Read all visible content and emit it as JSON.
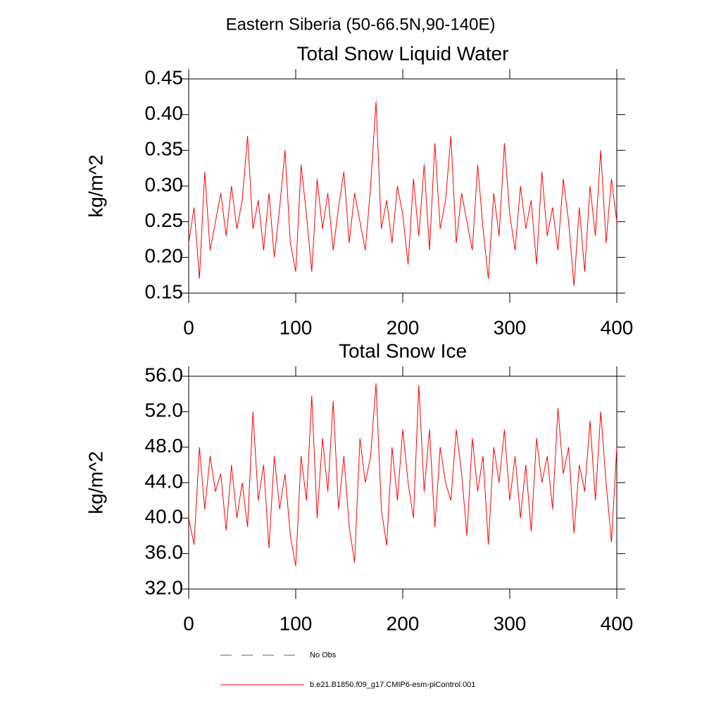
{
  "title": "Eastern Siberia (50-66.5N,90-140E)",
  "legend": [
    {
      "name": "No Obs",
      "color": "#5a5a9a",
      "dash": true
    },
    {
      "name": "b.e21.B1850.f09_g17.CMIP6-esm-piControl.001",
      "color": "#ff0000",
      "dash": false
    }
  ],
  "chart_data": [
    {
      "type": "line",
      "title": "Total Snow Liquid Water",
      "y_label": "kg/m^2",
      "x": [
        0,
        5,
        10,
        15,
        20,
        25,
        30,
        35,
        40,
        45,
        50,
        55,
        60,
        65,
        70,
        75,
        80,
        85,
        90,
        95,
        100,
        105,
        110,
        115,
        120,
        125,
        130,
        135,
        140,
        145,
        150,
        155,
        160,
        165,
        170,
        175,
        180,
        185,
        190,
        195,
        200,
        205,
        210,
        215,
        220,
        225,
        230,
        235,
        240,
        245,
        250,
        255,
        260,
        265,
        270,
        275,
        280,
        285,
        290,
        295,
        300,
        305,
        310,
        315,
        320,
        325,
        330,
        335,
        340,
        345,
        350,
        355,
        360,
        365,
        370,
        375,
        380,
        385,
        390,
        395,
        400
      ],
      "series": [
        {
          "color": "#ff0000",
          "values": [
            0.22,
            0.27,
            0.17,
            0.32,
            0.21,
            0.25,
            0.29,
            0.23,
            0.3,
            0.24,
            0.28,
            0.37,
            0.24,
            0.28,
            0.21,
            0.29,
            0.2,
            0.27,
            0.35,
            0.22,
            0.18,
            0.33,
            0.26,
            0.18,
            0.31,
            0.24,
            0.29,
            0.21,
            0.27,
            0.32,
            0.22,
            0.29,
            0.25,
            0.21,
            0.3,
            0.418,
            0.24,
            0.28,
            0.22,
            0.3,
            0.26,
            0.19,
            0.31,
            0.23,
            0.33,
            0.21,
            0.36,
            0.24,
            0.28,
            0.37,
            0.22,
            0.29,
            0.25,
            0.21,
            0.33,
            0.24,
            0.17,
            0.29,
            0.23,
            0.36,
            0.26,
            0.21,
            0.3,
            0.24,
            0.28,
            0.19,
            0.32,
            0.23,
            0.27,
            0.21,
            0.31,
            0.25,
            0.16,
            0.27,
            0.18,
            0.3,
            0.23,
            0.35,
            0.22,
            0.31,
            0.25
          ]
        }
      ],
      "xlim": [
        0,
        400
      ],
      "xticks": [
        0,
        100,
        200,
        300,
        400
      ],
      "ylim": [
        0.15,
        0.45
      ],
      "yticks": [
        0.15,
        {
          "value": 0.2,
          "label": "0.20"
        },
        0.25,
        {
          "value": 0.3,
          "label": "0.30"
        },
        0.35,
        {
          "value": 0.4,
          "label": "0.40"
        },
        0.45
      ]
    },
    {
      "type": "line",
      "title": "Total Snow Ice",
      "y_label": "kg/m^2",
      "x": [
        0,
        5,
        10,
        15,
        20,
        25,
        30,
        35,
        40,
        45,
        50,
        55,
        60,
        65,
        70,
        75,
        80,
        85,
        90,
        95,
        100,
        105,
        110,
        115,
        120,
        125,
        130,
        135,
        140,
        145,
        150,
        155,
        160,
        165,
        170,
        175,
        180,
        185,
        190,
        195,
        200,
        205,
        210,
        215,
        220,
        225,
        230,
        235,
        240,
        245,
        250,
        255,
        260,
        265,
        270,
        275,
        280,
        285,
        290,
        295,
        300,
        305,
        310,
        315,
        320,
        325,
        330,
        335,
        340,
        345,
        350,
        355,
        360,
        365,
        370,
        375,
        380,
        385,
        390,
        395,
        400
      ],
      "series": [
        {
          "color": "#ff0000",
          "values": [
            40.0,
            37.0,
            48,
            41,
            47,
            43,
            45,
            38.6,
            46,
            40,
            44,
            39,
            52,
            42,
            46,
            36.6,
            47,
            41,
            45,
            38,
            34.6,
            47,
            42,
            53.8,
            40,
            49,
            43,
            53.2,
            41,
            47,
            39,
            35,
            49,
            44,
            47,
            55.2,
            41,
            36.9,
            48,
            42,
            50,
            44,
            40,
            55,
            43,
            50,
            39,
            48,
            44,
            42,
            50,
            45,
            38,
            49,
            43,
            47,
            37,
            48,
            44,
            50,
            42,
            47,
            40,
            46,
            38.5,
            49,
            44,
            47,
            41,
            52.4,
            45,
            48,
            38.3,
            46,
            43,
            51,
            42,
            52,
            44,
            37.3,
            48
          ]
        }
      ],
      "xlim": [
        0,
        400
      ],
      "xticks": [
        0,
        100,
        200,
        300,
        400
      ],
      "ylim": [
        32,
        56
      ],
      "yticks": [
        {
          "value": 32,
          "label": "32.0"
        },
        {
          "value": 36,
          "label": "36.0"
        },
        {
          "value": 40,
          "label": "40.0"
        },
        {
          "value": 44,
          "label": "44.0"
        },
        {
          "value": 48,
          "label": "48.0"
        },
        {
          "value": 52,
          "label": "52.0"
        },
        {
          "value": 56,
          "label": "56.0"
        }
      ]
    }
  ]
}
